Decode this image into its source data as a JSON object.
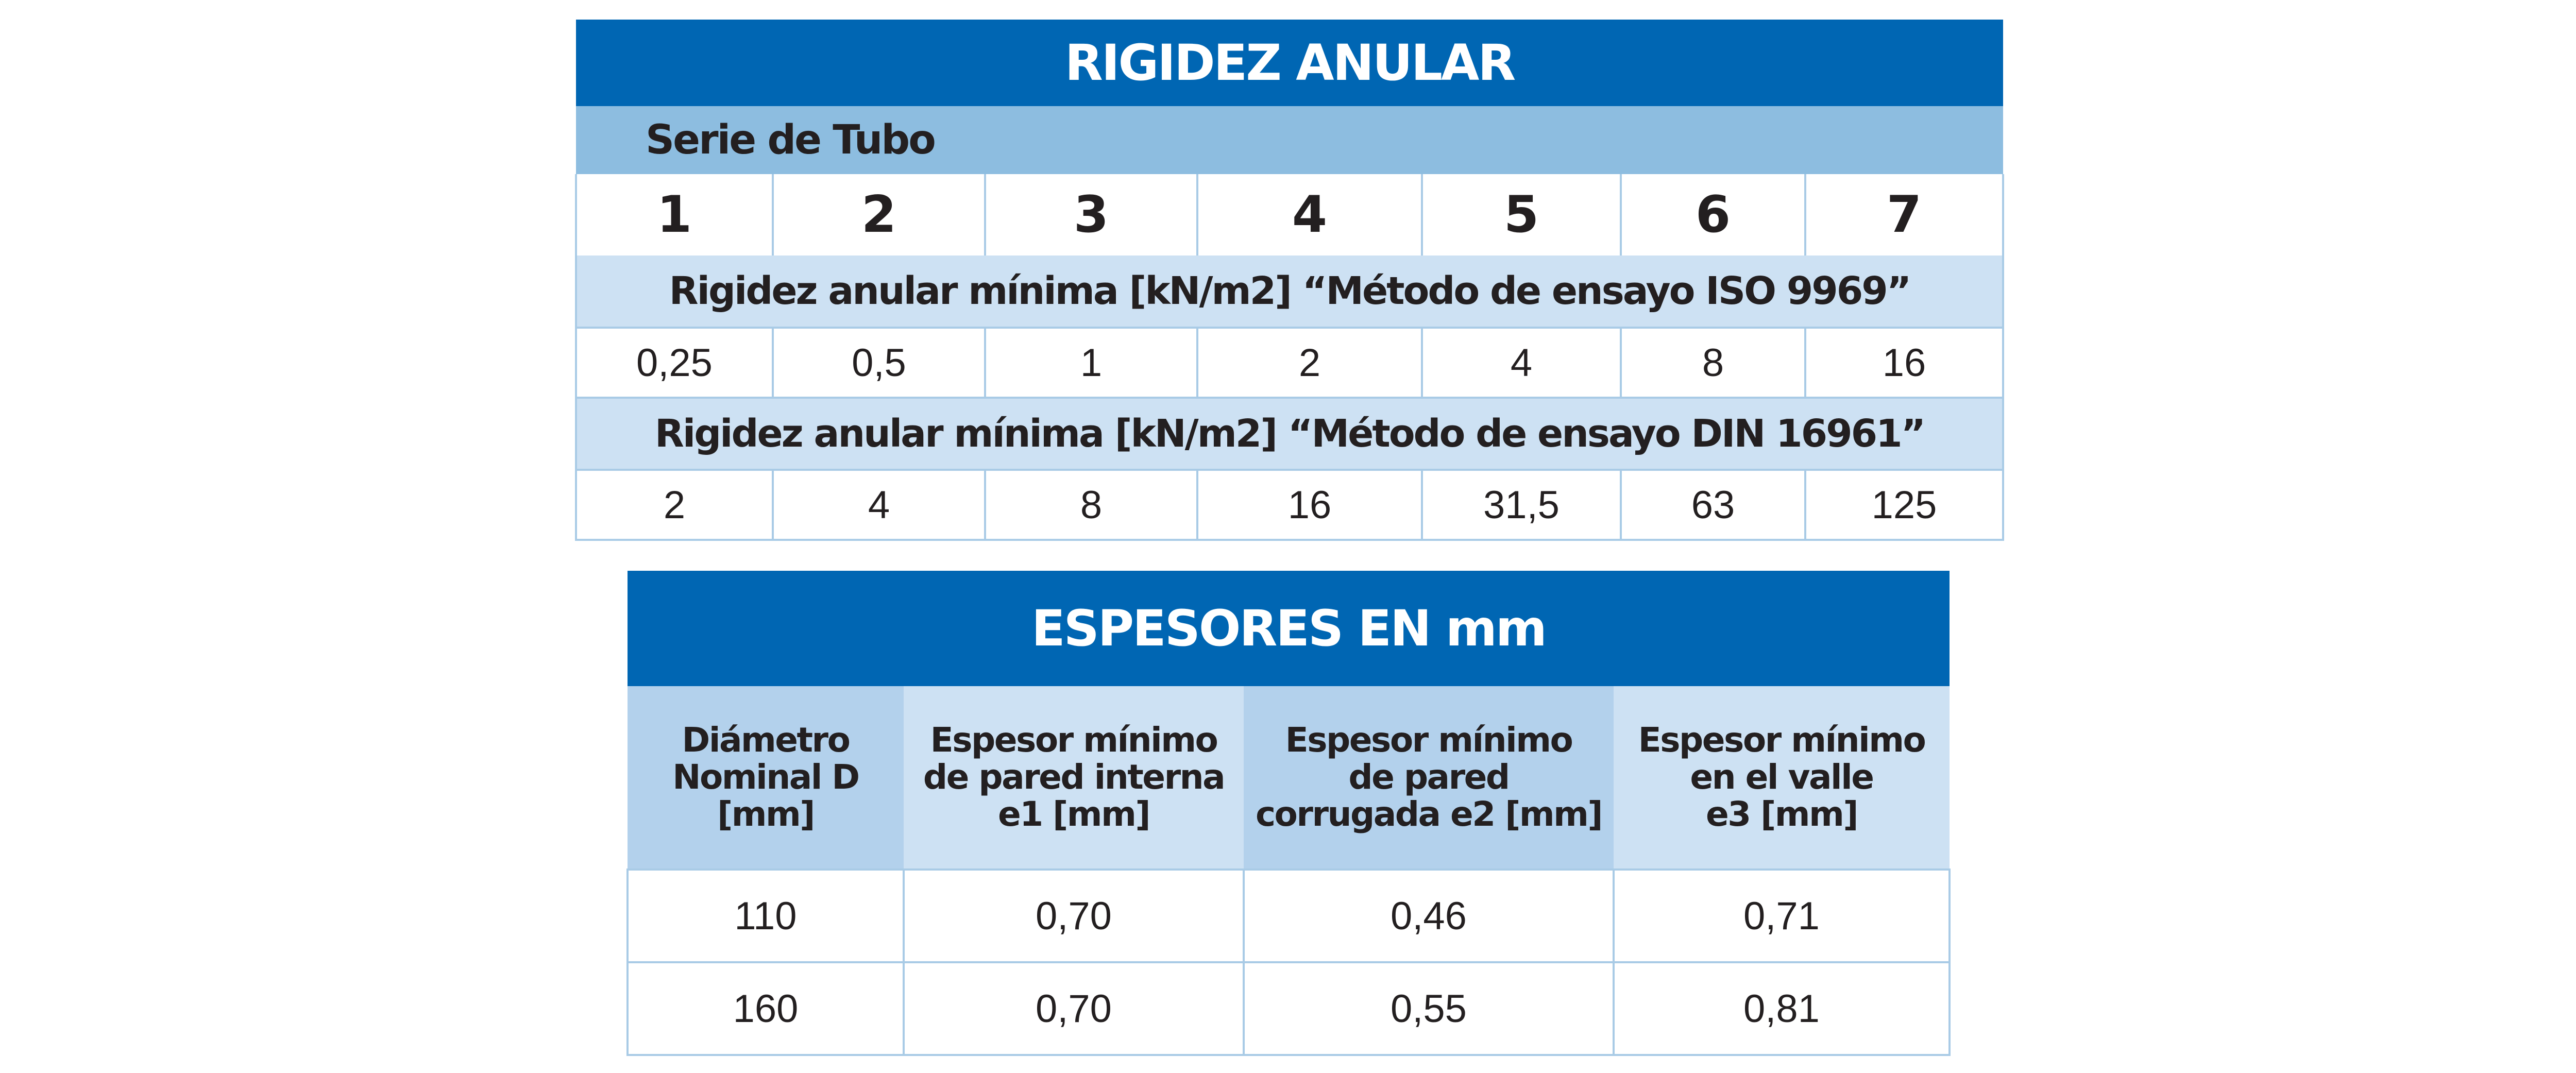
{
  "rigidez": {
    "title": "RIGIDEZ ANULAR",
    "serie_label": "Serie de Tubo",
    "series": [
      "1",
      "2",
      "3",
      "4",
      "5",
      "6",
      "7"
    ],
    "method_iso_label": "Rigidez anular mínima [kN/m2] “Método de ensayo ISO 9969”",
    "iso_values": [
      "0,25",
      "0,5",
      "1",
      "2",
      "4",
      "8",
      "16"
    ],
    "method_din_label": "Rigidez anular mínima [kN/m2] “Método de ensayo DIN 16961”",
    "din_values": [
      "2",
      "4",
      "8",
      "16",
      "31,5",
      "63",
      "125"
    ]
  },
  "espesores": {
    "title": "ESPESORES EN mm",
    "headers": [
      {
        "lines": [
          "Diámetro",
          "Nominal D",
          "[mm]"
        ]
      },
      {
        "lines": [
          "Espesor mínimo",
          "de pared interna",
          "e1 [mm]"
        ]
      },
      {
        "lines": [
          "Espesor mínimo",
          "de pared",
          "corrugada e2 [mm]"
        ]
      },
      {
        "lines": [
          "Espesor mínimo",
          "en el valle",
          "e3 [mm]"
        ]
      }
    ],
    "rows": [
      [
        "110",
        "0,70",
        "0,46",
        "0,71"
      ],
      [
        "160",
        "0,70",
        "0,55",
        "0,81"
      ]
    ]
  }
}
